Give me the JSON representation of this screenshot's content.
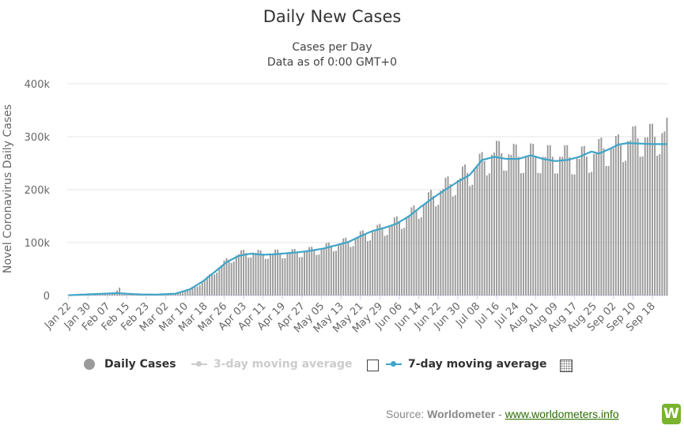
{
  "chart_data": {
    "type": "bar",
    "title": "Daily New Cases",
    "subtitle_line1": "Cases per Day",
    "subtitle_line2": "Data as of 0:00 GMT+0",
    "ylabel": "Novel Coronavirus Daily Cases",
    "ylim": [
      0,
      400000
    ],
    "yticks": [
      "0",
      "100k",
      "200k",
      "300k",
      "400k"
    ],
    "ytick_values": [
      0,
      100000,
      200000,
      300000,
      400000
    ],
    "grid": true,
    "x_start": "Jan 22",
    "x_end": "Sep 24",
    "xtick_labels": [
      "Jan 22",
      "Jan 30",
      "Feb 07",
      "Feb 15",
      "Feb 23",
      "Mar 02",
      "Mar 10",
      "Mar 18",
      "Mar 26",
      "Apr 03",
      "Apr 11",
      "Apr 19",
      "Apr 27",
      "May 05",
      "May 13",
      "May 21",
      "May 29",
      "Jun 06",
      "Jun 14",
      "Jun 22",
      "Jun 30",
      "Jul 08",
      "Jul 16",
      "Jul 24",
      "Aug 01",
      "Aug 09",
      "Aug 17",
      "Aug 25",
      "Sep 02",
      "Sep 10",
      "Sep 18"
    ],
    "series": [
      {
        "name": "Daily Cases",
        "color": "#9a9a9a",
        "keypoints": [
          [
            0,
            600
          ],
          [
            8,
            2000
          ],
          [
            16,
            2500
          ],
          [
            19,
            4000
          ],
          [
            21,
            15000
          ],
          [
            22,
            4000
          ],
          [
            24,
            2500
          ],
          [
            30,
            2000
          ],
          [
            36,
            1500
          ],
          [
            44,
            3000
          ],
          [
            50,
            10000
          ],
          [
            55,
            25000
          ],
          [
            60,
            45000
          ],
          [
            65,
            65000
          ],
          [
            70,
            78000
          ],
          [
            75,
            82000
          ],
          [
            80,
            78000
          ],
          [
            85,
            80000
          ],
          [
            90,
            80000
          ],
          [
            95,
            82000
          ],
          [
            100,
            85000
          ],
          [
            105,
            90000
          ],
          [
            110,
            96000
          ],
          [
            115,
            102000
          ],
          [
            120,
            112000
          ],
          [
            125,
            120000
          ],
          [
            130,
            128000
          ],
          [
            135,
            138000
          ],
          [
            140,
            150000
          ],
          [
            145,
            168000
          ],
          [
            150,
            188000
          ],
          [
            155,
            205000
          ],
          [
            160,
            218000
          ],
          [
            165,
            235000
          ],
          [
            170,
            250000
          ],
          [
            175,
            270000
          ],
          [
            180,
            268000
          ],
          [
            185,
            262000
          ],
          [
            190,
            265000
          ],
          [
            195,
            262000
          ],
          [
            200,
            262000
          ],
          [
            205,
            262000
          ],
          [
            210,
            258000
          ],
          [
            215,
            265000
          ],
          [
            220,
            278000
          ],
          [
            225,
            278000
          ],
          [
            230,
            292000
          ],
          [
            235,
            298000
          ],
          [
            242,
            300000
          ],
          [
            245,
            310000
          ]
        ],
        "weekly_amplitude": 0.12
      },
      {
        "name": "3-day moving average",
        "color": "#cccccc",
        "visible": false
      },
      {
        "name": "7-day moving average",
        "color": "#3ea5c8",
        "keypoints": [
          [
            0,
            600
          ],
          [
            8,
            2200
          ],
          [
            16,
            3800
          ],
          [
            20,
            4500
          ],
          [
            24,
            3500
          ],
          [
            30,
            2000
          ],
          [
            36,
            1800
          ],
          [
            44,
            3500
          ],
          [
            50,
            12000
          ],
          [
            55,
            26000
          ],
          [
            60,
            44000
          ],
          [
            65,
            63000
          ],
          [
            70,
            75000
          ],
          [
            75,
            79000
          ],
          [
            80,
            77000
          ],
          [
            85,
            78000
          ],
          [
            90,
            80000
          ],
          [
            95,
            82000
          ],
          [
            100,
            85000
          ],
          [
            105,
            89000
          ],
          [
            110,
            95000
          ],
          [
            115,
            101000
          ],
          [
            120,
            112000
          ],
          [
            125,
            122000
          ],
          [
            130,
            128000
          ],
          [
            135,
            136000
          ],
          [
            140,
            150000
          ],
          [
            145,
            168000
          ],
          [
            150,
            185000
          ],
          [
            155,
            200000
          ],
          [
            160,
            215000
          ],
          [
            165,
            228000
          ],
          [
            170,
            256000
          ],
          [
            175,
            262000
          ],
          [
            180,
            258000
          ],
          [
            185,
            258000
          ],
          [
            190,
            265000
          ],
          [
            195,
            258000
          ],
          [
            200,
            254000
          ],
          [
            205,
            256000
          ],
          [
            210,
            262000
          ],
          [
            215,
            272000
          ],
          [
            218,
            268000
          ],
          [
            222,
            276000
          ],
          [
            226,
            285000
          ],
          [
            230,
            288000
          ],
          [
            235,
            287000
          ],
          [
            240,
            286000
          ],
          [
            245,
            286000
          ]
        ]
      }
    ],
    "legend": [
      "Daily Cases",
      "3-day moving average",
      "7-day moving average"
    ],
    "legend_position": "bottom"
  },
  "source": {
    "label": "Source:",
    "name": "Worldometer",
    "separator": "-",
    "link": "www.worldometers.info",
    "logo_letter": "W"
  },
  "colors": {
    "bars": "#9a9a9a",
    "line": "#3ea5c8",
    "grid": "#e6e6e6",
    "link": "#2b6d00",
    "logo": "#7ab32e"
  }
}
